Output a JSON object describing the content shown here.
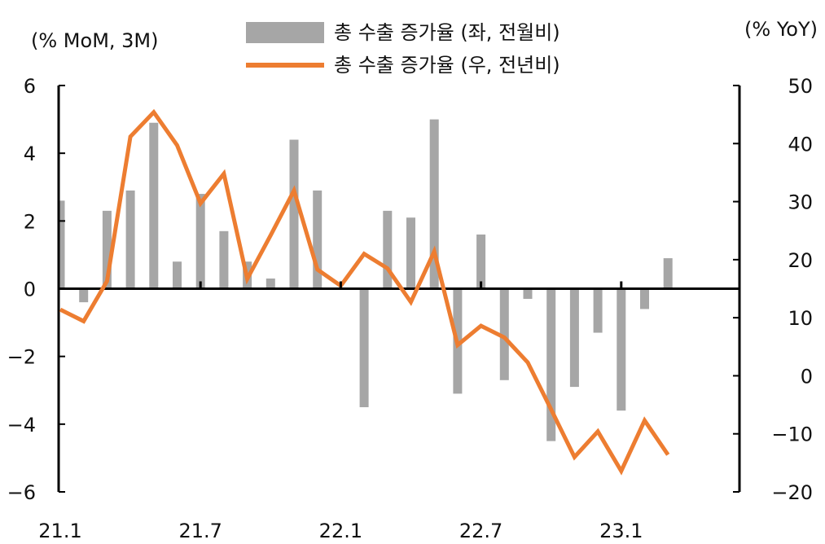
{
  "chart_data": {
    "type": "bar+line",
    "left_axis_label": "(% MoM, 3M)",
    "right_axis_label": "(% YoY)",
    "ylim_left": [
      -6,
      6
    ],
    "ylim_right": [
      -20,
      50
    ],
    "yticks_left": [
      "6",
      "4",
      "2",
      "0",
      "-2",
      "-4",
      "-6"
    ],
    "yticks_right": [
      "50",
      "40",
      "30",
      "20",
      "10",
      "0",
      "-10",
      "-20"
    ],
    "xtick_labels": [
      "21.1",
      "21.7",
      "22.1",
      "22.7",
      "23.1"
    ],
    "grid": false,
    "legend_position": "top-center",
    "x": [
      "21.1",
      "21.2",
      "21.3",
      "21.4",
      "21.5",
      "21.6",
      "21.7",
      "21.8",
      "21.9",
      "21.10",
      "21.11",
      "21.12",
      "22.1",
      "22.2",
      "22.3",
      "22.4",
      "22.5",
      "22.6",
      "22.7",
      "22.8",
      "22.9",
      "22.10",
      "22.11",
      "22.12",
      "23.1",
      "23.2",
      "23.3"
    ],
    "series": [
      {
        "name": "총 수출 증가율 (좌, 전월비)",
        "type": "bar",
        "axis": "left",
        "color": "#a6a6a6",
        "values": [
          2.6,
          -0.4,
          2.3,
          2.9,
          4.9,
          0.8,
          2.8,
          1.7,
          0.8,
          0.3,
          4.4,
          2.9,
          0.0,
          -3.5,
          2.3,
          2.1,
          5.0,
          -3.1,
          1.6,
          -2.7,
          -0.3,
          -4.5,
          -2.9,
          -1.3,
          -3.6,
          -0.6,
          0.9
        ]
      },
      {
        "name": "총 수출 증가율 (우, 전년비)",
        "type": "line",
        "axis": "right",
        "color": "#ed7d31",
        "values": [
          11.4,
          9.4,
          16.3,
          41.2,
          45.4,
          39.7,
          29.7,
          34.8,
          16.7,
          24.2,
          31.9,
          18.3,
          15.5,
          21.0,
          18.5,
          12.7,
          21.4,
          5.3,
          8.6,
          6.6,
          2.3,
          -5.8,
          -14.0,
          -9.6,
          -16.4,
          -7.7,
          -13.6
        ]
      }
    ]
  }
}
